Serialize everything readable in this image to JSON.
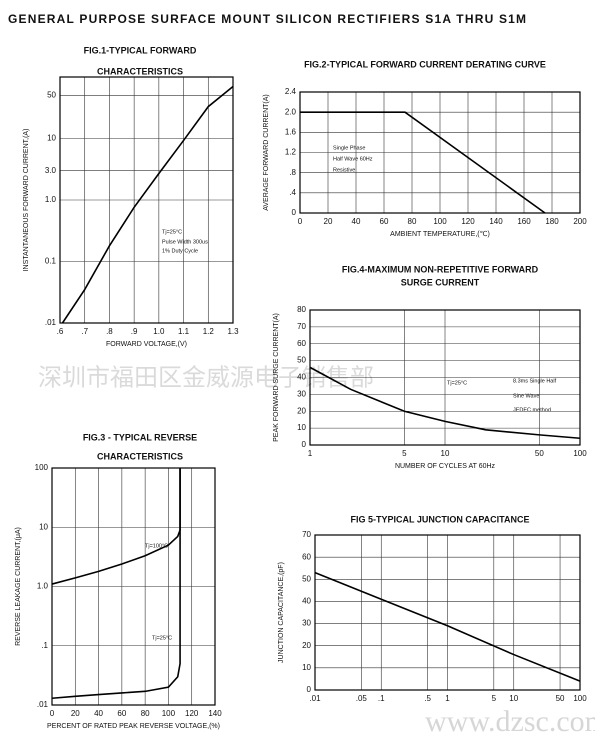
{
  "header": {
    "title": "GENERAL PURPOSE SURFACE MOUNT SILICON RECTIFIERS  S1A THRU S1M"
  },
  "watermarks": [
    "深圳市福田区金威源电子销售部",
    "www.dzsc.com"
  ],
  "chart_data": [
    {
      "type": "line",
      "title": [
        "FIG.1-TYPICAL FORWARD",
        "CHARACTERISTICS"
      ],
      "x_label": "FORWARD VOLTAGE,(V)",
      "y_label": "INSTANTANEOUS FORWARD CURRENT,(A)",
      "xscale": "linear",
      "yscale": "log",
      "grid": true,
      "xlim": [
        0.6,
        1.3
      ],
      "ylim": [
        0.01,
        100
      ],
      "xticks": [
        {
          "value": 0.6,
          "label": ".6"
        },
        {
          "value": 0.7,
          "label": ".7"
        },
        {
          "value": 0.8,
          "label": ".8"
        },
        {
          "value": 0.9,
          "label": ".9"
        },
        {
          "value": 1.0,
          "label": "1.0"
        },
        {
          "value": 1.1,
          "label": "1.1"
        },
        {
          "value": 1.2,
          "label": "1.2"
        },
        1.3
      ],
      "yticks": [
        {
          "value": 0.01,
          "label": ".01"
        },
        0.1,
        {
          "value": 1.0,
          "label": "1.0"
        },
        {
          "value": 3.0,
          "label": "3.0"
        },
        10,
        50
      ],
      "series": [
        {
          "color": "#000000",
          "x": [
            0.61,
            0.7,
            0.8,
            0.9,
            1.0,
            1.1,
            1.2,
            1.3
          ],
          "values": [
            0.01,
            0.035,
            0.18,
            0.76,
            2.7,
            9.3,
            33,
            70
          ]
        }
      ],
      "annotations": [
        "Tj=25°C",
        "Pulse Width 300us",
        "1% Duty Cycle"
      ]
    },
    {
      "type": "line",
      "title": [
        "FIG.2-TYPICAL FORWARD CURRENT DERATING CURVE"
      ],
      "x_label": "AMBIENT TEMPERATURE,(℃)",
      "y_label": "AVERAGE FORWARD CURRENT(A)",
      "xscale": "linear",
      "yscale": "linear",
      "grid": true,
      "xlim": [
        0,
        200
      ],
      "ylim": [
        0,
        2.4
      ],
      "xticks": [
        0,
        20,
        40,
        60,
        80,
        100,
        120,
        140,
        160,
        180,
        200
      ],
      "yticks": [
        0,
        {
          "value": 0.4,
          "label": ".4"
        },
        {
          "value": 0.8,
          "label": ".8"
        },
        1.2,
        1.6,
        {
          "value": 2.0,
          "label": "2.0"
        },
        2.4
      ],
      "series": [
        {
          "color": "#000000",
          "x": [
            0,
            75,
            175
          ],
          "values": [
            2,
            2,
            0
          ]
        }
      ],
      "annotations": [
        "Single Phase",
        "Half Wave 60Hz",
        "Resistive"
      ]
    },
    {
      "type": "line",
      "title": [
        "FIG.3 - TYPICAL REVERSE",
        "CHARACTERISTICS"
      ],
      "x_label": "PERCENT OF RATED PEAK REVERSE VOLTAGE,(%)",
      "y_label": "REVERSE LEAKAGE CURRENT,(μA)",
      "xscale": "linear",
      "yscale": "log",
      "grid": true,
      "xlim": [
        0,
        140
      ],
      "ylim": [
        0.01,
        100
      ],
      "xticks": [
        0,
        20,
        40,
        60,
        80,
        100,
        120,
        140
      ],
      "yticks": [
        {
          "value": 0.01,
          "label": ".01"
        },
        {
          "value": 0.1,
          "label": ".1"
        },
        {
          "value": 1.0,
          "label": "1.0"
        },
        10,
        100
      ],
      "series": [
        {
          "name": "Tj=100°C",
          "color": "#000000",
          "x": [
            0,
            20,
            40,
            60,
            80,
            100,
            108,
            110,
            110
          ],
          "values": [
            1.1,
            1.4,
            1.8,
            2.4,
            3.3,
            5,
            7,
            9,
            100
          ]
        },
        {
          "name": "Tj=25°C",
          "color": "#000000",
          "x": [
            0,
            20,
            40,
            60,
            80,
            100,
            108,
            110,
            110
          ],
          "values": [
            0.013,
            0.014,
            0.015,
            0.016,
            0.017,
            0.02,
            0.03,
            0.05,
            100
          ]
        }
      ],
      "annotations": []
    },
    {
      "type": "line",
      "title": [
        "FIG.4-MAXIMUM NON-REPETITIVE FORWARD",
        "SURGE CURRENT"
      ],
      "x_label": "NUMBER OF CYCLES AT 60Hz",
      "y_label": "PEAK FORWARD SURGE CURRENT(A)",
      "xscale": "log",
      "yscale": "linear",
      "grid": true,
      "xlim": [
        1,
        100
      ],
      "ylim": [
        0,
        80
      ],
      "xticks": [
        1,
        5,
        10,
        50,
        100
      ],
      "yticks": [
        0,
        10,
        20,
        30,
        40,
        50,
        60,
        70,
        80
      ],
      "series": [
        {
          "color": "#000000",
          "x": [
            1,
            2,
            5,
            10,
            20,
            50,
            100
          ],
          "values": [
            46,
            33,
            20,
            14,
            9,
            6,
            4
          ]
        }
      ],
      "annotations": [
        "Tj=25°C",
        "8.3ms Single Half",
        "Sine Wave",
        "JEDEC method"
      ]
    },
    {
      "type": "line",
      "title": [
        "FIG 5-TYPICAL JUNCTION CAPACITANCE"
      ],
      "x_label": "",
      "y_label": "JUNCTION CAPACITANCE,(pF)",
      "xscale": "log",
      "yscale": "linear",
      "grid": true,
      "xlim": [
        0.01,
        100
      ],
      "ylim": [
        0,
        70
      ],
      "xticks": [
        {
          "value": 0.01,
          "label": ".01"
        },
        {
          "value": 0.05,
          "label": ".05"
        },
        {
          "value": 0.1,
          "label": ".1"
        },
        {
          "value": 0.5,
          "label": ".5"
        },
        1,
        5,
        10,
        50,
        100
      ],
      "yticks": [
        0,
        10,
        20,
        30,
        40,
        50,
        60,
        70
      ],
      "series": [
        {
          "color": "#000000",
          "x": [
            0.01,
            0.1,
            1,
            10,
            100
          ],
          "values": [
            53,
            41,
            29,
            16,
            4
          ]
        }
      ],
      "annotations": []
    }
  ]
}
